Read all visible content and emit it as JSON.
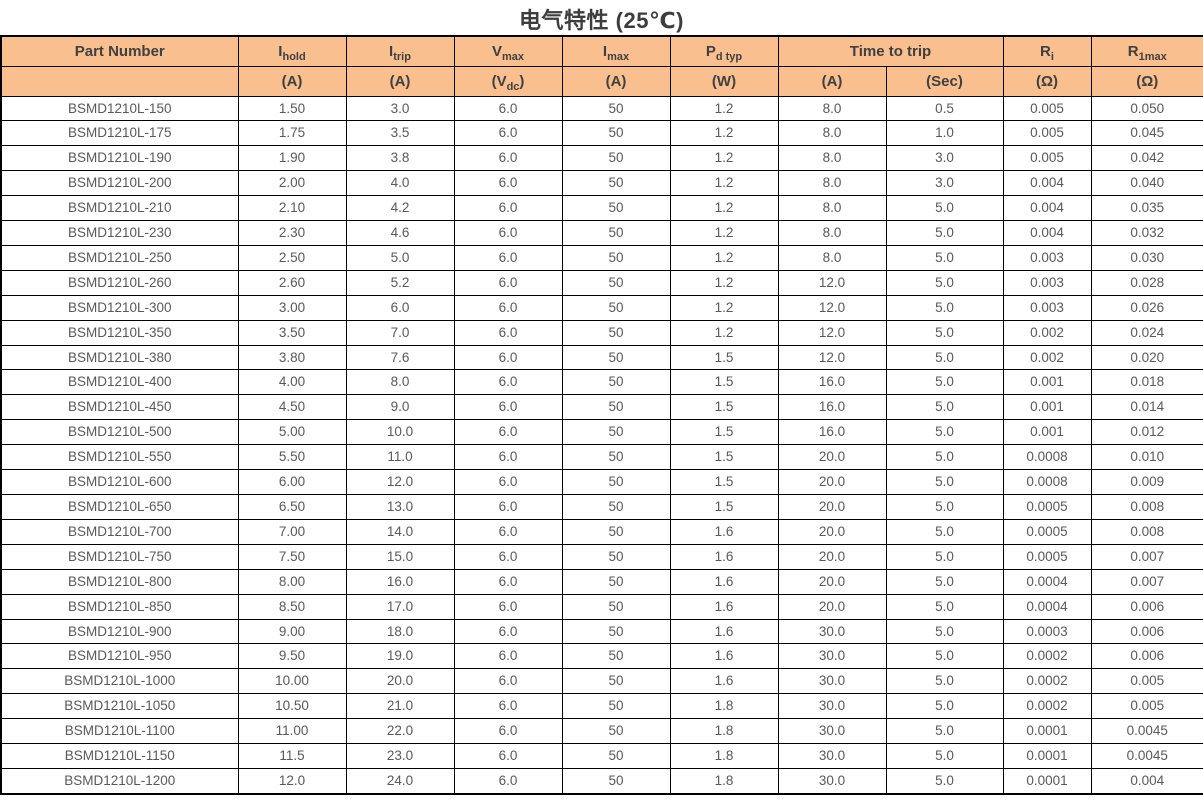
{
  "page": {
    "title": "电气特性 (25℃)"
  },
  "colors": {
    "header_bg": "#FABF8F",
    "border": "#000000",
    "header_text": "#404040",
    "data_text": "#595959"
  },
  "table": {
    "header": {
      "part_number": "Part Number",
      "cols": {
        "ihold": {
          "base": "I",
          "sub": "hold"
        },
        "itrip": {
          "base": "I",
          "sub": "trip"
        },
        "vmax": {
          "base": "V",
          "sub": "max"
        },
        "imax": {
          "base": "I",
          "sub": "max"
        },
        "pd_typ": {
          "base": "P",
          "sub": "d typ"
        },
        "time_to_trip": "Time to trip",
        "ri": {
          "base": "R",
          "sub": "i"
        },
        "r1max": {
          "base": "R",
          "sub": "1max"
        }
      },
      "units": {
        "ihold": "(A)",
        "itrip": "(A)",
        "vmax_pre": "(V",
        "vmax_sub": "dc",
        "vmax_post": ")",
        "imax": "(A)",
        "pd_typ": "(W)",
        "ttt_a": "(A)",
        "ttt_sec": "(Sec)",
        "ri": "(Ω)",
        "r1max": "(Ω)"
      }
    },
    "rows": [
      [
        "BSMD1210L-150",
        "1.50",
        "3.0",
        "6.0",
        "50",
        "1.2",
        "8.0",
        "0.5",
        "0.005",
        "0.050"
      ],
      [
        "BSMD1210L-175",
        "1.75",
        "3.5",
        "6.0",
        "50",
        "1.2",
        "8.0",
        "1.0",
        "0.005",
        "0.045"
      ],
      [
        "BSMD1210L-190",
        "1.90",
        "3.8",
        "6.0",
        "50",
        "1.2",
        "8.0",
        "3.0",
        "0.005",
        "0.042"
      ],
      [
        "BSMD1210L-200",
        "2.00",
        "4.0",
        "6.0",
        "50",
        "1.2",
        "8.0",
        "3.0",
        "0.004",
        "0.040"
      ],
      [
        "BSMD1210L-210",
        "2.10",
        "4.2",
        "6.0",
        "50",
        "1.2",
        "8.0",
        "5.0",
        "0.004",
        "0.035"
      ],
      [
        "BSMD1210L-230",
        "2.30",
        "4.6",
        "6.0",
        "50",
        "1.2",
        "8.0",
        "5.0",
        "0.004",
        "0.032"
      ],
      [
        "BSMD1210L-250",
        "2.50",
        "5.0",
        "6.0",
        "50",
        "1.2",
        "8.0",
        "5.0",
        "0.003",
        "0.030"
      ],
      [
        "BSMD1210L-260",
        "2.60",
        "5.2",
        "6.0",
        "50",
        "1.2",
        "12.0",
        "5.0",
        "0.003",
        "0.028"
      ],
      [
        "BSMD1210L-300",
        "3.00",
        "6.0",
        "6.0",
        "50",
        "1.2",
        "12.0",
        "5.0",
        "0.003",
        "0.026"
      ],
      [
        "BSMD1210L-350",
        "3.50",
        "7.0",
        "6.0",
        "50",
        "1.2",
        "12.0",
        "5.0",
        "0.002",
        "0.024"
      ],
      [
        "BSMD1210L-380",
        "3.80",
        "7.6",
        "6.0",
        "50",
        "1.5",
        "12.0",
        "5.0",
        "0.002",
        "0.020"
      ],
      [
        "BSMD1210L-400",
        "4.00",
        "8.0",
        "6.0",
        "50",
        "1.5",
        "16.0",
        "5.0",
        "0.001",
        "0.018"
      ],
      [
        "BSMD1210L-450",
        "4.50",
        "9.0",
        "6.0",
        "50",
        "1.5",
        "16.0",
        "5.0",
        "0.001",
        "0.014"
      ],
      [
        "BSMD1210L-500",
        "5.00",
        "10.0",
        "6.0",
        "50",
        "1.5",
        "16.0",
        "5.0",
        "0.001",
        "0.012"
      ],
      [
        "BSMD1210L-550",
        "5.50",
        "11.0",
        "6.0",
        "50",
        "1.5",
        "20.0",
        "5.0",
        "0.0008",
        "0.010"
      ],
      [
        "BSMD1210L-600",
        "6.00",
        "12.0",
        "6.0",
        "50",
        "1.5",
        "20.0",
        "5.0",
        "0.0008",
        "0.009"
      ],
      [
        "BSMD1210L-650",
        "6.50",
        "13.0",
        "6.0",
        "50",
        "1.5",
        "20.0",
        "5.0",
        "0.0005",
        "0.008"
      ],
      [
        "BSMD1210L-700",
        "7.00",
        "14.0",
        "6.0",
        "50",
        "1.6",
        "20.0",
        "5.0",
        "0.0005",
        "0.008"
      ],
      [
        "BSMD1210L-750",
        "7.50",
        "15.0",
        "6.0",
        "50",
        "1.6",
        "20.0",
        "5.0",
        "0.0005",
        "0.007"
      ],
      [
        "BSMD1210L-800",
        "8.00",
        "16.0",
        "6.0",
        "50",
        "1.6",
        "20.0",
        "5.0",
        "0.0004",
        "0.007"
      ],
      [
        "BSMD1210L-850",
        "8.50",
        "17.0",
        "6.0",
        "50",
        "1.6",
        "20.0",
        "5.0",
        "0.0004",
        "0.006"
      ],
      [
        "BSMD1210L-900",
        "9.00",
        "18.0",
        "6.0",
        "50",
        "1.6",
        "30.0",
        "5.0",
        "0.0003",
        "0.006"
      ],
      [
        "BSMD1210L-950",
        "9.50",
        "19.0",
        "6.0",
        "50",
        "1.6",
        "30.0",
        "5.0",
        "0.0002",
        "0.006"
      ],
      [
        "BSMD1210L-1000",
        "10.00",
        "20.0",
        "6.0",
        "50",
        "1.6",
        "30.0",
        "5.0",
        "0.0002",
        "0.005"
      ],
      [
        "BSMD1210L-1050",
        "10.50",
        "21.0",
        "6.0",
        "50",
        "1.8",
        "30.0",
        "5.0",
        "0.0002",
        "0.005"
      ],
      [
        "BSMD1210L-1100",
        "11.00",
        "22.0",
        "6.0",
        "50",
        "1.8",
        "30.0",
        "5.0",
        "0.0001",
        "0.0045"
      ],
      [
        "BSMD1210L-1150",
        "11.5",
        "23.0",
        "6.0",
        "50",
        "1.8",
        "30.0",
        "5.0",
        "0.0001",
        "0.0045"
      ],
      [
        "BSMD1210L-1200",
        "12.0",
        "24.0",
        "6.0",
        "50",
        "1.8",
        "30.0",
        "5.0",
        "0.0001",
        "0.004"
      ]
    ]
  }
}
